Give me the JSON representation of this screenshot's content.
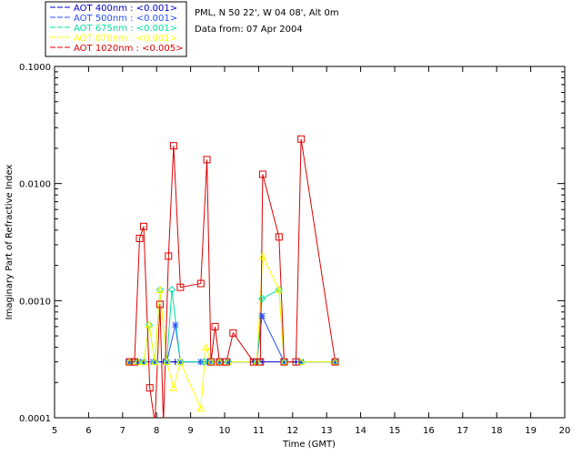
{
  "header": {
    "location": "PML, N 50 22', W 04 08', Alt 0m",
    "date_line": "Data from: 07 Apr 2004"
  },
  "chart_data": {
    "type": "line",
    "title": "",
    "xlabel": "Time (GMT)",
    "ylabel": "Imaginary Part of Refractive Index",
    "xlim": [
      5,
      20
    ],
    "ylim": [
      0.0001,
      0.1
    ],
    "y_scale": "log",
    "grid": false,
    "legend_position": "top-left-outside",
    "x_ticks": [
      5,
      6,
      7,
      8,
      9,
      10,
      11,
      12,
      13,
      14,
      15,
      16,
      17,
      18,
      19,
      20
    ],
    "y_ticks": [
      {
        "value": 0.0001,
        "label": "0.0001"
      },
      {
        "value": 0.001,
        "label": "0.0010"
      },
      {
        "value": 0.01,
        "label": "0.0100"
      },
      {
        "value": 0.1,
        "label": "0.1000"
      }
    ],
    "series": [
      {
        "name": "AOT  400nm : <0.001>",
        "legend_label": "AOT  400nm : <0.001>",
        "color": "#0000c8",
        "marker": "plus",
        "points": [
          [
            7.18,
            0.0003
          ],
          [
            7.45,
            0.0003
          ],
          [
            7.62,
            0.0003
          ],
          [
            7.95,
            0.0003
          ],
          [
            8.2,
            0.0003
          ],
          [
            8.55,
            0.0003
          ],
          [
            9.3,
            0.0003
          ],
          [
            9.55,
            0.0003
          ],
          [
            9.85,
            0.0003
          ],
          [
            10.1,
            0.0003
          ],
          [
            10.85,
            0.0003
          ],
          [
            11.1,
            0.0003
          ],
          [
            11.75,
            0.0003
          ],
          [
            12.1,
            0.0003
          ],
          [
            13.25,
            0.0003
          ]
        ]
      },
      {
        "name": "AOT  500nm : <0.001>",
        "legend_label": "AOT  500nm : <0.001>",
        "color": "#2850ff",
        "marker": "star",
        "points": [
          [
            7.2,
            0.0003
          ],
          [
            7.45,
            0.0003
          ],
          [
            7.6,
            0.0003
          ],
          [
            7.9,
            0.0003
          ],
          [
            8.3,
            0.0003
          ],
          [
            8.55,
            0.00062
          ],
          [
            8.7,
            0.0003
          ],
          [
            9.3,
            0.0003
          ],
          [
            9.55,
            0.0003
          ],
          [
            9.85,
            0.0003
          ],
          [
            10.1,
            0.0003
          ],
          [
            10.95,
            0.0003
          ],
          [
            11.1,
            0.00074
          ],
          [
            11.75,
            0.0003
          ],
          [
            12.25,
            0.0003
          ],
          [
            13.25,
            0.0003
          ]
        ]
      },
      {
        "name": "AOT  675nm : <0.001>",
        "legend_label": "AOT  675nm : <0.001>",
        "color": "#00e0a0",
        "marker": "diamond",
        "points": [
          [
            7.2,
            0.0003
          ],
          [
            7.45,
            0.0003
          ],
          [
            7.62,
            0.0003
          ],
          [
            7.78,
            0.00062
          ],
          [
            7.95,
            0.0003
          ],
          [
            8.1,
            0.00124
          ],
          [
            8.3,
            0.0003
          ],
          [
            8.45,
            0.00124
          ],
          [
            8.7,
            0.0003
          ],
          [
            9.4,
            0.0003
          ],
          [
            9.6,
            0.0003
          ],
          [
            9.85,
            0.0003
          ],
          [
            10.1,
            0.0003
          ],
          [
            10.95,
            0.0003
          ],
          [
            11.1,
            0.00104
          ],
          [
            11.6,
            0.00124
          ],
          [
            11.75,
            0.0003
          ],
          [
            12.25,
            0.0003
          ],
          [
            13.25,
            0.0003
          ]
        ]
      },
      {
        "name": "AOT  870nm : <0.001>",
        "legend_label": "AOT  870nm : <0.001>",
        "color": "#ffff00",
        "marker": "triangle",
        "points": [
          [
            7.2,
            0.0003
          ],
          [
            7.45,
            0.0003
          ],
          [
            7.62,
            0.0003
          ],
          [
            7.78,
            0.00062
          ],
          [
            7.95,
            0.0003
          ],
          [
            8.1,
            0.00124
          ],
          [
            8.3,
            0.0003
          ],
          [
            8.5,
            0.00018
          ],
          [
            8.7,
            0.0003
          ],
          [
            9.3,
            0.00012
          ],
          [
            9.45,
            0.0004
          ],
          [
            9.6,
            0.0003
          ],
          [
            9.85,
            0.0003
          ],
          [
            10.1,
            0.0003
          ],
          [
            10.95,
            0.0003
          ],
          [
            11.12,
            0.0024
          ],
          [
            11.6,
            0.00124
          ],
          [
            11.75,
            0.0003
          ],
          [
            12.25,
            0.0003
          ],
          [
            13.25,
            0.0003
          ]
        ]
      },
      {
        "name": "AOT 1020nm : <0.005>",
        "legend_label": "AOT 1020nm : <0.005>",
        "color": "#dd0000",
        "marker": "square",
        "points": [
          [
            7.2,
            0.0003
          ],
          [
            7.35,
            0.0003
          ],
          [
            7.5,
            0.0034
          ],
          [
            7.62,
            0.0043
          ],
          [
            7.8,
            0.00018
          ],
          [
            7.95,
            9e-05
          ],
          [
            8.1,
            0.00093
          ],
          [
            8.2,
            9e-05
          ],
          [
            8.35,
            0.0024
          ],
          [
            8.5,
            0.021
          ],
          [
            8.7,
            0.0013
          ],
          [
            9.3,
            0.0014
          ],
          [
            9.48,
            0.016
          ],
          [
            9.6,
            0.0003
          ],
          [
            9.72,
            0.0006
          ],
          [
            9.85,
            0.0003
          ],
          [
            10.05,
            0.0003
          ],
          [
            10.25,
            0.00053
          ],
          [
            10.85,
            0.0003
          ],
          [
            11.05,
            0.0003
          ],
          [
            11.12,
            0.012
          ],
          [
            11.6,
            0.0035
          ],
          [
            11.75,
            0.0003
          ],
          [
            12.1,
            0.0003
          ],
          [
            12.25,
            0.024
          ],
          [
            13.25,
            0.0003
          ]
        ]
      }
    ]
  }
}
